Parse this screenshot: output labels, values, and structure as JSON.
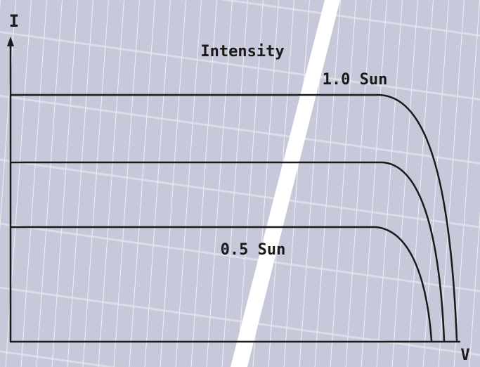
{
  "axes": {
    "y_label": "I",
    "x_label": "V"
  },
  "legend": {
    "title": "Intensity",
    "high": "1.0 Sun",
    "low": "0.5 Sun"
  }
}
